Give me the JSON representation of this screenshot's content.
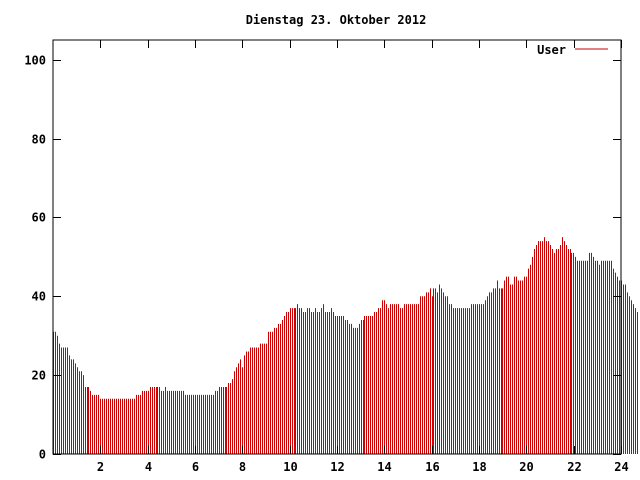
{
  "chart_data": {
    "type": "bar",
    "title": "Dienstag 23. Oktober 2012",
    "xlabel": "",
    "ylabel": "",
    "xlim": [
      0,
      24
    ],
    "ylim": [
      0,
      105
    ],
    "x_ticks": [
      2,
      4,
      6,
      8,
      10,
      12,
      14,
      16,
      18,
      20,
      22,
      24
    ],
    "x_tick_labels": [
      "2",
      "4",
      "6",
      "8",
      "10",
      "12",
      "14",
      "16",
      "18",
      "20",
      "22",
      "24"
    ],
    "y_ticks": [
      0,
      20,
      40,
      60,
      80,
      100
    ],
    "y_tick_labels": [
      "0",
      "20",
      "40",
      "60",
      "80",
      "100"
    ],
    "grid": false,
    "legend_position": "top-right",
    "series": [
      {
        "name": "User",
        "color": "#cc0000",
        "interval_hours": 0.0833,
        "values": [
          31,
          31,
          30,
          28,
          27,
          27,
          27,
          27,
          25,
          24,
          24,
          23,
          22,
          21,
          21,
          20,
          17,
          17,
          17,
          16,
          15,
          15,
          15,
          15,
          14,
          14,
          14,
          14,
          14,
          14,
          14,
          14,
          14,
          14,
          14,
          14,
          14,
          14,
          14,
          14,
          14,
          14,
          15,
          15,
          15,
          16,
          16,
          16,
          16,
          17,
          17,
          17,
          17,
          17,
          17,
          16,
          16,
          17,
          16,
          16,
          16,
          16,
          16,
          16,
          16,
          16,
          16,
          15,
          15,
          15,
          15,
          15,
          15,
          15,
          15,
          15,
          15,
          15,
          15,
          15,
          15,
          15,
          16,
          16,
          17,
          17,
          17,
          17,
          17,
          18,
          18,
          19,
          21,
          22,
          23,
          24,
          22,
          25,
          26,
          26,
          27,
          27,
          27,
          27,
          27,
          28,
          28,
          28,
          28,
          31,
          31,
          31,
          32,
          32,
          33,
          33,
          34,
          35,
          36,
          36,
          37,
          37,
          37,
          37,
          38,
          37,
          37,
          36,
          36,
          37,
          37,
          36,
          36,
          37,
          36,
          36,
          37,
          38,
          36,
          36,
          36,
          37,
          36,
          35,
          35,
          35,
          35,
          35,
          34,
          34,
          33,
          33,
          32,
          32,
          32,
          33,
          34,
          34,
          35,
          35,
          35,
          35,
          35,
          36,
          36,
          37,
          37,
          39,
          39,
          38,
          37,
          38,
          38,
          38,
          38,
          38,
          37,
          37,
          38,
          38,
          38,
          38,
          38,
          38,
          38,
          38,
          40,
          40,
          40,
          41,
          41,
          42,
          40,
          42,
          42,
          41,
          43,
          42,
          41,
          40,
          40,
          38,
          38,
          37,
          37,
          37,
          37,
          37,
          37,
          37,
          37,
          37,
          38,
          38,
          38,
          38,
          38,
          38,
          38,
          39,
          40,
          41,
          41,
          42,
          42,
          44,
          42,
          42,
          42,
          44,
          45,
          45,
          43,
          43,
          45,
          45,
          44,
          44,
          44,
          45,
          45,
          47,
          48,
          50,
          52,
          53,
          54,
          54,
          54,
          55,
          54,
          54,
          53,
          52,
          51,
          52,
          52,
          53,
          55,
          54,
          53,
          52,
          52,
          51,
          51,
          50,
          49,
          49,
          49,
          49,
          49,
          49,
          51,
          51,
          50,
          49,
          49,
          48,
          49,
          49,
          49,
          49,
          49,
          49,
          47,
          46,
          45,
          44,
          44,
          43,
          43,
          41,
          40,
          39,
          38,
          37,
          36
        ]
      }
    ]
  }
}
